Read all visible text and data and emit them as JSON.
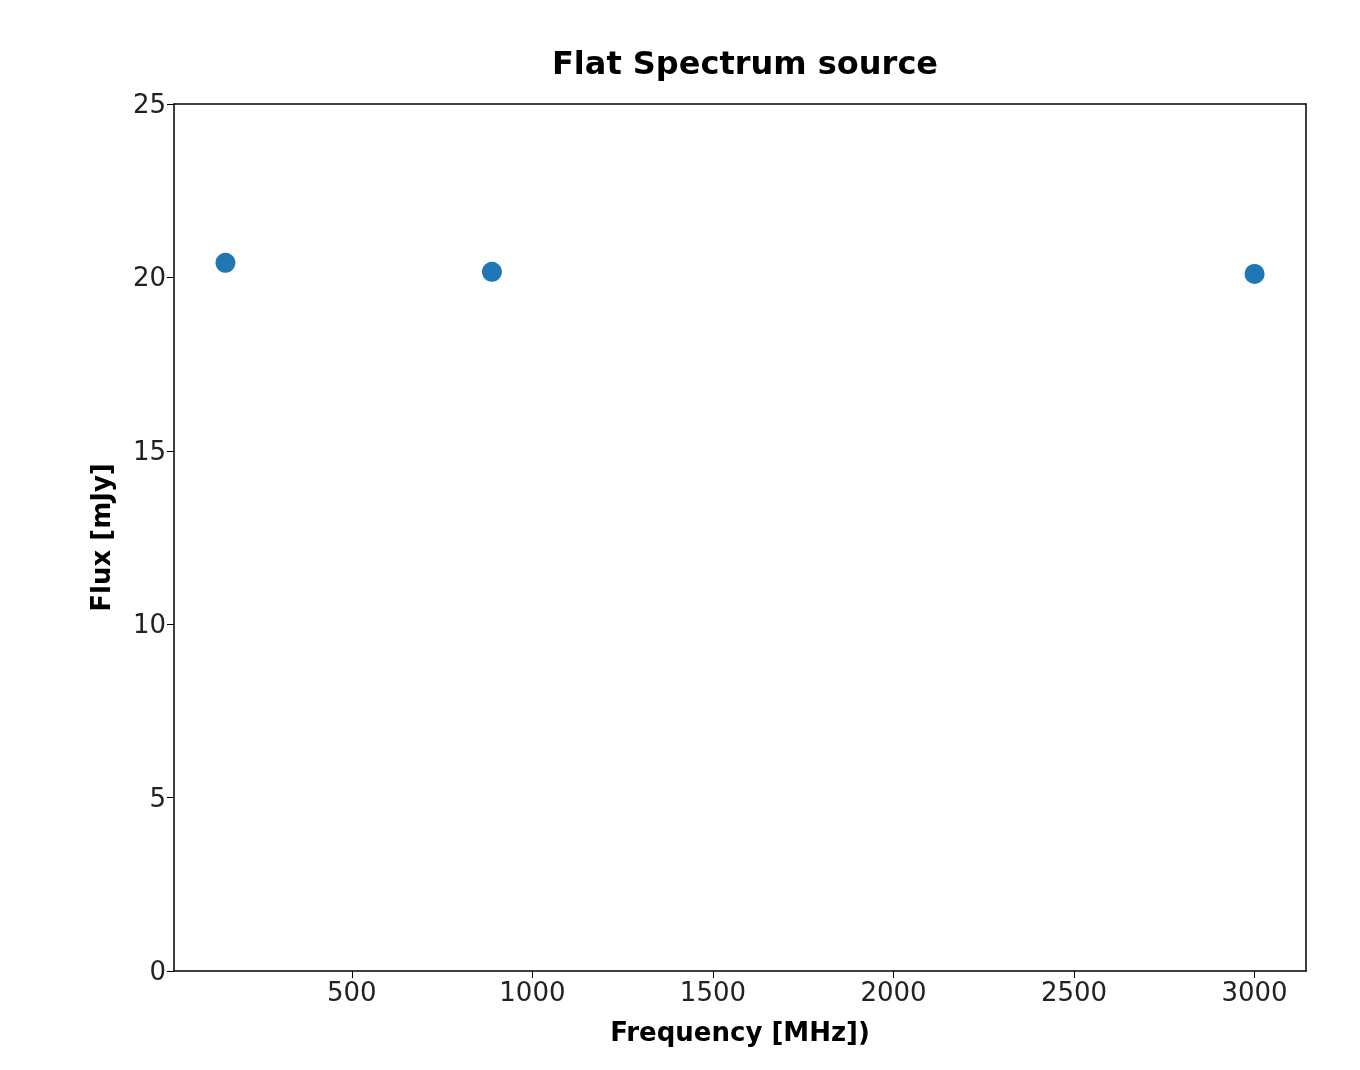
{
  "chart_data": {
    "type": "scatter",
    "title": "Flat Spectrum source",
    "xlabel": "Frequency [MHz])",
    "ylabel": "Flux [mJy]",
    "x": [
      150,
      888,
      3000
    ],
    "series": [
      {
        "color": "#1f77b4",
        "values": [
          20.42,
          20.16,
          20.1
        ]
      }
    ],
    "xlim": [
      7.5,
      3142.5
    ],
    "xticks": [
      500,
      1000,
      1500,
      2000,
      2500,
      3000
    ],
    "ylim": [
      0,
      25
    ],
    "yticks": [
      0,
      5,
      10,
      15,
      20,
      25
    ],
    "grid": false,
    "marker": "circle"
  }
}
